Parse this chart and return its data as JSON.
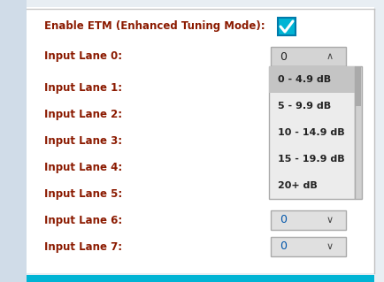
{
  "fig_w": 4.35,
  "fig_h": 3.19,
  "dpi": 100,
  "bg_color": "#e8eef3",
  "panel_color": "#ffffff",
  "left_sidebar_color": "#d0dce8",
  "top_line_color": "#c8c8c8",
  "bottom_bar_color": "#00b4d4",
  "right_border_color": "#c0c0c0",
  "checkbox_color": "#00b4d4",
  "label_color": "#8b1a00",
  "label_fontsize": 8.5,
  "etm_label": "Enable ETM (Enhanced Tuning Mode):",
  "input_lanes": [
    "Input Lane 0:",
    "Input Lane 1:",
    "Input Lane 2:",
    "Input Lane 3:",
    "Input Lane 4:",
    "Input Lane 5:",
    "Input Lane 6:",
    "Input Lane 7:"
  ],
  "spinbox_value": "0",
  "spinbox_color": "#d4d4d4",
  "spinbox_border": "#aaaaaa",
  "spinbox_arrow_color": "#444444",
  "dropdown_items": [
    "0 - 4.9 dB",
    "5 - 9.9 dB",
    "10 - 14.9 dB",
    "15 - 19.9 dB",
    "20+ dB"
  ],
  "dropdown_bg": "#ececec",
  "dropdown_selected_bg": "#c4c4c4",
  "dropdown_border": "#aaaaaa",
  "dropdown_text_color": "#222222",
  "dropdown_fontsize": 8.0,
  "small_dropdown_bg": "#e0e0e0",
  "small_dropdown_border": "#aaaaaa",
  "small_dropdown_text_color": "#0055aa"
}
